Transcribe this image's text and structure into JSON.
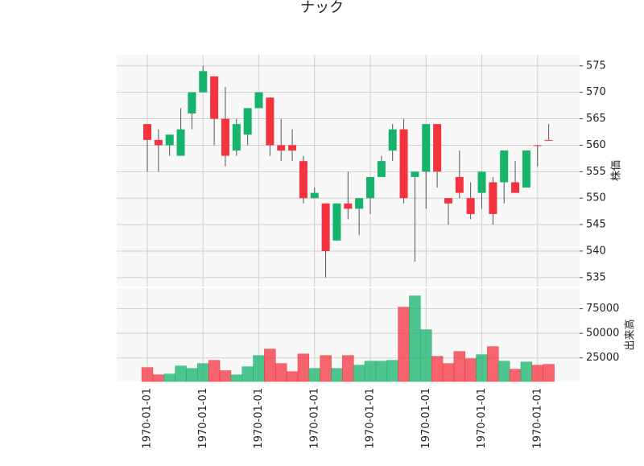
{
  "chart_data": {
    "type": "candlestick",
    "title": "ナック",
    "ylabel": "株価",
    "volume_ylabel": "出来高",
    "categories": [
      "1970-01-01",
      null,
      null,
      null,
      null,
      "1970-01-01",
      null,
      null,
      null,
      null,
      "1970-01-01",
      null,
      null,
      null,
      null,
      "1970-01-01",
      null,
      null,
      null,
      null,
      "1970-01-01",
      null,
      null,
      null,
      null,
      "1970-01-01",
      null,
      null,
      null,
      null,
      "1970-01-01",
      null,
      null,
      null,
      null,
      "1970-01-01",
      null
    ],
    "open": [
      564,
      561,
      560,
      558,
      566,
      570,
      573,
      565,
      559,
      562,
      567,
      569,
      560,
      560,
      557,
      550,
      549,
      542,
      549,
      548,
      550,
      554,
      559,
      563,
      554,
      555,
      564,
      550,
      554,
      550,
      551,
      553,
      553,
      553,
      552,
      560,
      561
    ],
    "high": [
      564,
      563,
      562,
      567,
      570,
      575,
      573,
      571,
      565,
      567,
      570,
      569,
      565,
      563,
      558,
      552,
      549,
      549,
      555,
      550,
      554,
      558,
      564,
      565,
      555,
      564,
      564,
      550,
      559,
      553,
      555,
      554,
      559,
      557,
      559,
      560,
      564
    ],
    "low": [
      555,
      555,
      558,
      558,
      563,
      570,
      560,
      556,
      558,
      560,
      567,
      558,
      557,
      557,
      549,
      550,
      535,
      542,
      546,
      543,
      547,
      554,
      557,
      549,
      538,
      548,
      552,
      545,
      550,
      546,
      548,
      545,
      549,
      551,
      552,
      556,
      561
    ],
    "close": [
      561,
      560,
      562,
      563,
      570,
      574,
      565,
      558,
      564,
      567,
      570,
      560,
      559,
      559,
      550,
      551,
      540,
      549,
      548,
      550,
      554,
      557,
      563,
      550,
      555,
      564,
      555,
      549,
      551,
      547,
      555,
      547,
      559,
      551,
      559,
      560,
      561
    ],
    "volume": [
      15200,
      7800,
      8600,
      16800,
      14300,
      19300,
      22500,
      12000,
      7800,
      16000,
      27400,
      34000,
      19300,
      11000,
      29000,
      14300,
      27400,
      14300,
      27400,
      17600,
      21700,
      21700,
      22500,
      76600,
      88100,
      53700,
      26600,
      19300,
      31500,
      24200,
      28300,
      36500,
      21700,
      13500,
      20900,
      17600,
      18400
    ],
    "up_color": "#15b36b",
    "down_color": "#f5333f",
    "ylim": [
      533.3,
      577.1
    ],
    "yticks": [
      535,
      540,
      545,
      550,
      555,
      560,
      565,
      570,
      575
    ],
    "volume_ylim": [
      1000,
      96000
    ],
    "volume_yticks": [
      25000,
      50000,
      75000
    ],
    "grid": true
  }
}
